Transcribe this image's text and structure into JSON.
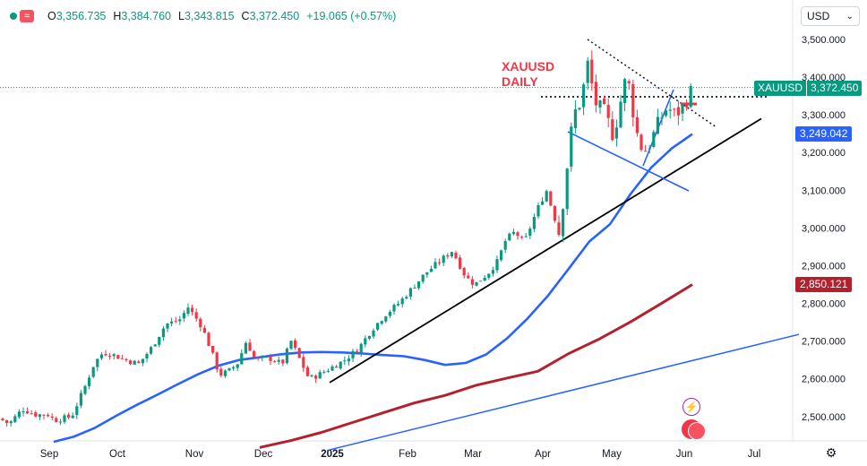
{
  "symbol_bar": {
    "icon_wave": "≈",
    "open_label": "O",
    "open_value": "3,356.735",
    "high_label": "H",
    "high_value": "3,384.760",
    "low_label": "L",
    "low_value": "3,343.815",
    "close_label": "C",
    "close_value": "3,372.450",
    "change": "+19.065 (+0.57%)"
  },
  "currency": {
    "label": "USD",
    "icon": "chevron-down-icon"
  },
  "annotation": {
    "line1": "XAUUSD",
    "line2": "DAILY"
  },
  "price_tags": {
    "symbol": "XAUUSD",
    "last": "3,372.450",
    "ma_fast": "3,249.042",
    "ma_slow": "2,850.121"
  },
  "colors": {
    "up": "#089981",
    "down": "#f23645",
    "ma_fast": "#2962ff",
    "ma_slow": "#b2222e",
    "annotation": "#f23645",
    "trend_black": "#000000",
    "trend_blue": "#2962ff"
  },
  "chart_data": {
    "type": "candlestick",
    "title": "",
    "xlabel": "",
    "ylabel": "",
    "ylim": [
      2440,
      3560
    ],
    "y_ticks": [
      "3,500.000",
      "3,400.000",
      "3,300.000",
      "3,200.000",
      "3,100.000",
      "3,000.000",
      "2,900.000",
      "2,800.000",
      "2,700.000",
      "2,600.000",
      "2,500.000"
    ],
    "x_ticks": [
      "Sep",
      "Oct",
      "Nov",
      "Dec",
      "2025",
      "Feb",
      "Mar",
      "Apr",
      "May",
      "Jun",
      "Jul"
    ],
    "grid": false,
    "last_price": 3372.45,
    "series": [
      {
        "name": "",
        "kind": "ma_fast",
        "values": [
          2433,
          2447,
          2470,
          2501,
          2530,
          2557,
          2585,
          2612,
          2635,
          2650,
          2657,
          2665,
          2670,
          2671,
          2670,
          2667,
          2663,
          2660,
          2650,
          2637,
          2642,
          2665,
          2707,
          2760,
          2821,
          2892,
          2964,
          3010,
          3090,
          3160,
          3211,
          3249
        ]
      },
      {
        "name": "",
        "kind": "ma_slow",
        "values": [
          2418,
          2436,
          2458,
          2484,
          2510,
          2536,
          2556,
          2583,
          2602,
          2620,
          2667,
          2706,
          2751,
          2800,
          2850
        ]
      },
      {
        "name": "",
        "kind": "trend_black",
        "values": [
          2590,
          3290
        ]
      },
      {
        "name": "",
        "kind": "trend_blue",
        "values": [
          2410,
          2718
        ]
      }
    ]
  }
}
